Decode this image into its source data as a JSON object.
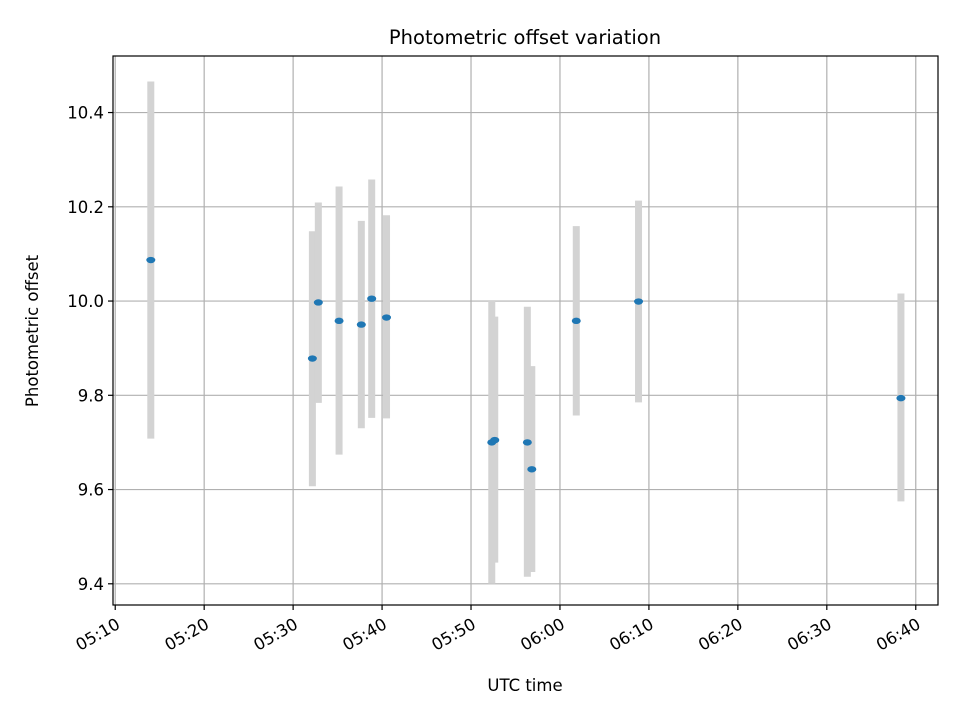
{
  "chart_data": {
    "type": "scatter",
    "title": "Photometric offset variation",
    "xlabel": "UTC time",
    "ylabel": "Photometric offset",
    "x_tick_labels": [
      "05:10",
      "05:20",
      "05:30",
      "05:40",
      "05:50",
      "06:00",
      "06:10",
      "06:20",
      "06:30",
      "06:40"
    ],
    "x_ticks": [
      "05:10",
      "05:20",
      "05:30",
      "05:40",
      "05:50",
      "06:00",
      "06:10",
      "06:20",
      "06:30",
      "06:40"
    ],
    "y_ticks": [
      9.4,
      9.6,
      9.8,
      10.0,
      10.2,
      10.4
    ],
    "y_tick_labels": [
      "9.4",
      "9.6",
      "9.8",
      "10.0",
      "10.2",
      "10.4"
    ],
    "xlim": [
      "05:09:45",
      "06:42:30"
    ],
    "ylim": [
      9.355,
      10.52
    ],
    "grid": true,
    "colors": {
      "marker": "#1f77b4",
      "errorbar": "#d3d3d3",
      "grid": "#b0b0b0"
    },
    "points": [
      {
        "time": "05:14:00",
        "value": 10.087,
        "err_low": 9.708,
        "err_high": 10.466
      },
      {
        "time": "05:32:10",
        "value": 9.878,
        "err_low": 9.607,
        "err_high": 10.148
      },
      {
        "time": "05:32:50",
        "value": 9.997,
        "err_low": 9.784,
        "err_high": 10.209
      },
      {
        "time": "05:35:10",
        "value": 9.958,
        "err_low": 9.674,
        "err_high": 10.243
      },
      {
        "time": "05:37:40",
        "value": 9.95,
        "err_low": 9.73,
        "err_high": 10.17
      },
      {
        "time": "05:38:50",
        "value": 10.005,
        "err_low": 9.752,
        "err_high": 10.258
      },
      {
        "time": "05:40:30",
        "value": 9.965,
        "err_low": 9.751,
        "err_high": 10.182
      },
      {
        "time": "05:52:20",
        "value": 9.7,
        "err_low": 9.4,
        "err_high": 10.0
      },
      {
        "time": "05:52:40",
        "value": 9.705,
        "err_low": 9.445,
        "err_high": 9.967
      },
      {
        "time": "05:56:20",
        "value": 9.7,
        "err_low": 9.415,
        "err_high": 9.988
      },
      {
        "time": "05:56:50",
        "value": 9.643,
        "err_low": 9.425,
        "err_high": 9.862
      },
      {
        "time": "06:01:50",
        "value": 9.958,
        "err_low": 9.757,
        "err_high": 10.159
      },
      {
        "time": "06:08:50",
        "value": 9.999,
        "err_low": 9.785,
        "err_high": 10.213
      },
      {
        "time": "06:38:20",
        "value": 9.794,
        "err_low": 9.575,
        "err_high": 10.016
      }
    ]
  }
}
